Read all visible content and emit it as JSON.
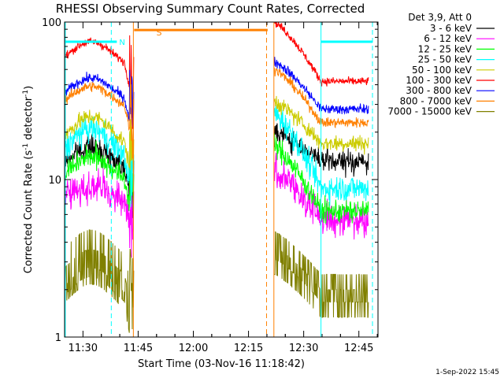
{
  "chart_data": {
    "type": "line",
    "title": "RHESSI Observing Summary Count Rates, Corrected",
    "xlabel": "Start Time (03-Nov-16 11:18:42)",
    "ylabel": "Corrected Count Rate (s⁻¹ detector⁻¹)",
    "ylabel_main": "Corrected Count Rate (s",
    "ylabel_sup1": "-1",
    "ylabel_mid": " detector",
    "ylabel_sup2": "-1",
    "ylabel_end": ")",
    "yscale": "log",
    "ylim": [
      1,
      100
    ],
    "xlim_minutes": [
      6.3,
      91.5
    ],
    "x_ticks": [
      {
        "label": "11:30",
        "min": 11.3
      },
      {
        "label": "11:45",
        "min": 26.3
      },
      {
        "label": "12:00",
        "min": 41.3
      },
      {
        "label": "12:15",
        "min": 56.3
      },
      {
        "label": "12:30",
        "min": 71.3
      },
      {
        "label": "12:45",
        "min": 86.3
      }
    ],
    "y_ticks": [
      {
        "label": "1",
        "value": 1
      },
      {
        "label": "10",
        "value": 10
      },
      {
        "label": "100",
        "value": 100
      }
    ],
    "legend_title": "Det 3,9, Att 0",
    "legend_position": "right",
    "footer": "1-Sep-2022 15:45",
    "flag_label": "S",
    "segments": [
      [
        6.3,
        24.9
      ],
      [
        63.3,
        88.9
      ]
    ],
    "series": [
      {
        "name": "3 - 6 keV",
        "color": "#000000",
        "sunlit": 16,
        "peak": 16,
        "early": 11,
        "late": 13,
        "noise": 0.07
      },
      {
        "name": "6 - 12 keV",
        "color": "#ff00ff",
        "sunlit": 9,
        "peak": 9,
        "early": 7,
        "late": 5.6,
        "noise": 0.1
      },
      {
        "name": "12 - 25 keV",
        "color": "#00ff00",
        "sunlit": 13,
        "peak": 14,
        "early": 9,
        "late": 6.3,
        "noise": 0.07
      },
      {
        "name": "25 - 50 keV",
        "color": "#00ffff",
        "sunlit": 21,
        "peak": 21,
        "early": 12,
        "late": 8.8,
        "noise": 0.08
      },
      {
        "name": "50 - 100 keV",
        "color": "#cccc00",
        "sunlit": 25,
        "peak": 25,
        "early": 15,
        "late": 17,
        "noise": 0.05
      },
      {
        "name": "100 - 300 keV",
        "color": "#ff0000",
        "sunlit": 80,
        "peak": 75,
        "early": 50,
        "late": 42,
        "noise": 0.025
      },
      {
        "name": "300 - 800 keV",
        "color": "#0000ff",
        "sunlit": 45,
        "peak": 44,
        "early": 30,
        "late": 28,
        "noise": 0.03
      },
      {
        "name": "800 - 7000 keV",
        "color": "#ff8000",
        "sunlit": 40,
        "peak": 39,
        "early": 27,
        "late": 23,
        "noise": 0.03
      },
      {
        "name": "7000 - 15000 keV",
        "color": "#808000",
        "sunlit": 3,
        "peak": 3.6,
        "early": 2.2,
        "late": 2,
        "noise": 0.22
      }
    ],
    "markers": [
      {
        "type": "horizontal",
        "color": "#00ffff",
        "from": 6.3,
        "to": 20.5,
        "value": 75,
        "label": "N"
      },
      {
        "type": "horizontal",
        "color": "#00ffff",
        "from": 76.0,
        "to": 90.0,
        "value": 75
      },
      {
        "type": "horizontal",
        "color": "#ff8000",
        "from": 25.2,
        "to": 61.5,
        "value": 89
      },
      {
        "type": "vertical",
        "color": "#00ffff",
        "style": "solid",
        "at": 6.5
      },
      {
        "type": "vertical",
        "color": "#00ffff",
        "style": "dashed",
        "at": 19.0
      },
      {
        "type": "vertical",
        "color": "#ff8000",
        "style": "solid",
        "at": 25.0
      },
      {
        "type": "vertical",
        "color": "#ff8000",
        "style": "dashed",
        "at": 61.2
      },
      {
        "type": "vertical",
        "color": "#ff8000",
        "style": "solid",
        "at": 63.2
      },
      {
        "type": "vertical",
        "color": "#00ffff",
        "style": "solid",
        "at": 76.0
      },
      {
        "type": "vertical",
        "color": "#00ffff",
        "style": "dashed",
        "at": 90.0
      }
    ]
  }
}
